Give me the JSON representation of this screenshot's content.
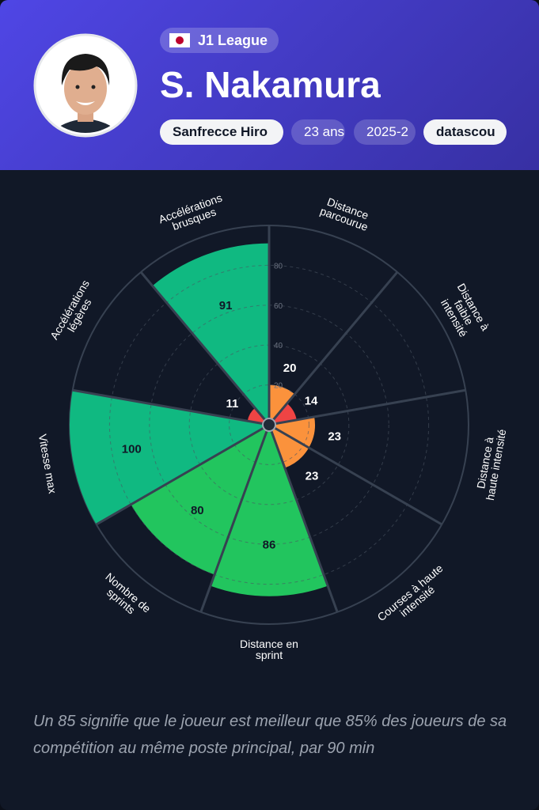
{
  "header": {
    "league": "J1 League",
    "player": "S. Nakamura",
    "chips": [
      "Sanfrecce Hiro",
      "23 ans",
      "2025-2",
      "datascou"
    ]
  },
  "chart_data": {
    "type": "polar-bar",
    "categories": [
      "Distance\nparcourue",
      "Distance à\nfaible\nintensité",
      "Distance à\nhaute intensité",
      "Courses à haute\nintensité",
      "Distance en\nsprint",
      "Nombre de\nsprints",
      "Vitesse max",
      "Accélérations\nlégères",
      "Accélérations\nbrusques"
    ],
    "values": [
      20,
      14,
      23,
      23,
      86,
      80,
      100,
      11,
      91
    ],
    "colors": [
      "#fb923c",
      "#ef4444",
      "#fb923c",
      "#fb923c",
      "#22c55e",
      "#22c55e",
      "#10b981",
      "#ef4444",
      "#10b981"
    ],
    "ylim": [
      0,
      100
    ],
    "yticks": [
      20,
      40,
      60,
      80
    ],
    "grid": true
  },
  "footnote": "Un 85 signifie que le joueur est meilleur que 85% des joueurs de sa compétition au même poste principal, par 90 min"
}
